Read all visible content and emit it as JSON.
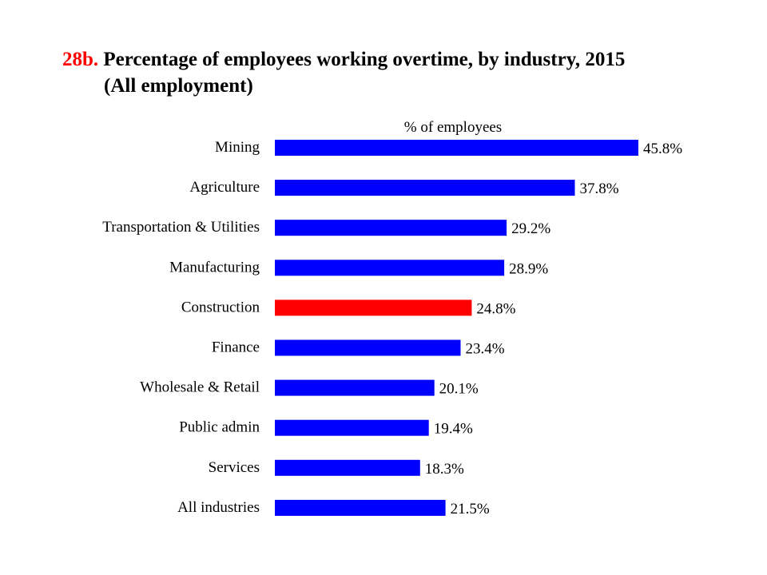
{
  "title": {
    "number": "28b.",
    "line1": "Percentage of employees working overtime, by industry, 2015",
    "line2": "(All employment)"
  },
  "chart_data": {
    "type": "bar",
    "orientation": "horizontal",
    "axis_label": "% of employees",
    "categories": [
      "Mining",
      "Agriculture",
      "Transportation & Utilities",
      "Manufacturing",
      "Construction",
      "Finance",
      "Wholesale & Retail",
      "Public admin",
      "Services",
      "All industries"
    ],
    "values": [
      45.8,
      37.8,
      29.2,
      28.9,
      24.8,
      23.4,
      20.1,
      19.4,
      18.3,
      21.5
    ],
    "value_labels": [
      "45.8%",
      "37.8%",
      "29.2%",
      "28.9%",
      "24.8%",
      "23.4%",
      "20.1%",
      "19.4%",
      "18.3%",
      "21.5%"
    ],
    "highlight_category": "Construction",
    "colors": {
      "default": "#0000ff",
      "highlight": "#ff0000"
    },
    "xlim": [
      0,
      50
    ],
    "grid": false,
    "legend": "none"
  }
}
